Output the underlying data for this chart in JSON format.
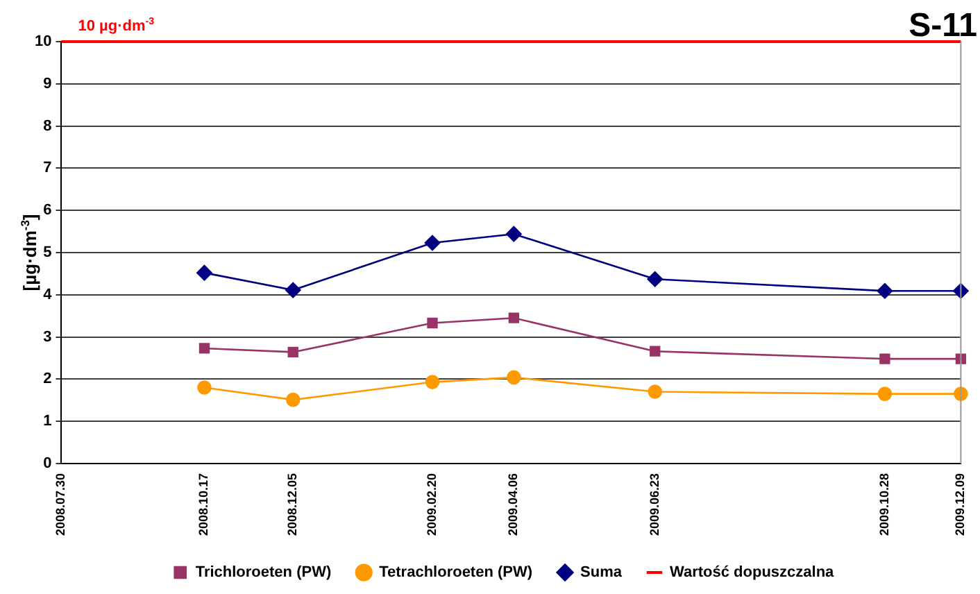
{
  "chart_data": {
    "type": "line",
    "title": "S-11",
    "ylabel": "[µg·dm$^{-3}$]",
    "x": [
      "2008-10-17",
      "2008-12-05",
      "2009-02-20",
      "2009-04-06",
      "2009-06-23",
      "2009-10-28",
      "2009-12-09"
    ],
    "series": [
      {
        "name": "Trichloroeten (PW)",
        "color": "#993366",
        "marker": "square",
        "values": [
          2.73,
          2.64,
          3.33,
          3.45,
          2.66,
          2.48,
          2.48
        ]
      },
      {
        "name": "Tetrachloroeten (PW)",
        "color": "#ff9900",
        "marker": "circle",
        "values": [
          1.8,
          1.51,
          1.93,
          2.04,
          1.7,
          1.65,
          1.65
        ]
      },
      {
        "name": "Suma",
        "color": "#000080",
        "marker": "diamond",
        "values": [
          4.52,
          4.11,
          5.23,
          5.44,
          4.37,
          4.09,
          4.09
        ]
      },
      {
        "name": "Wartość dopuszczalna",
        "color": "#ff0000",
        "marker": "none",
        "x": [
          "2008-07-30",
          "2009-12-09"
        ],
        "values": [
          10,
          10
        ]
      }
    ],
    "annotations": [
      {
        "text": "10 µg·dm$^{-3}$",
        "x": "2008-07-30",
        "y": 10
      }
    ],
    "xlim": [
      "2008-07-30",
      "2009-12-09"
    ],
    "xticks": [
      {
        "value": "2008-07-30",
        "label": "2008.07.30"
      },
      {
        "value": "2008-10-17",
        "label": "2008.10.17"
      },
      {
        "value": "2008-12-05",
        "label": "2008.12.05"
      },
      {
        "value": "2009-02-20",
        "label": "2009.02.20"
      },
      {
        "value": "2009-04-06",
        "label": "2009.04.06"
      },
      {
        "value": "2009-06-23",
        "label": "2009.06.23"
      },
      {
        "value": "2009-10-28",
        "label": "2009.10.28"
      },
      {
        "value": "2009-12-09",
        "label": "2009.12.09"
      }
    ],
    "ylim": [
      0,
      10
    ],
    "yticks": [
      0,
      1,
      2,
      3,
      4,
      5,
      6,
      7,
      8,
      9,
      10
    ],
    "grid": "y",
    "legend": "bottom",
    "line_style": "solid"
  }
}
